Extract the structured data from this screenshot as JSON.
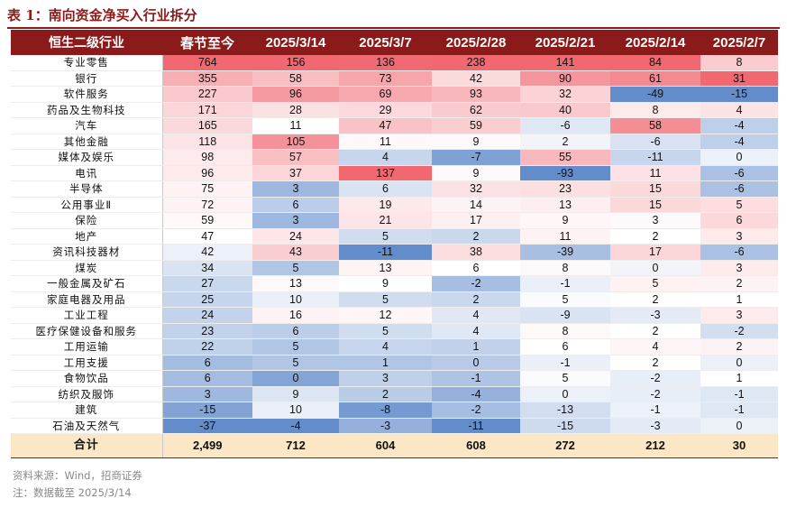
{
  "title": "表 1：南向资金净买入行业拆分",
  "headers": [
    "恒生二级行业",
    "春节至今",
    "2025/3/14",
    "2025/3/7",
    "2025/2/28",
    "2025/2/21",
    "2025/2/14",
    "2025/2/7"
  ],
  "rows": [
    {
      "name": "专业零售",
      "values": [
        764,
        156,
        136,
        238,
        141,
        84,
        8
      ]
    },
    {
      "name": "银行",
      "values": [
        355,
        58,
        73,
        42,
        90,
        61,
        31
      ]
    },
    {
      "name": "软件服务",
      "values": [
        227,
        96,
        69,
        93,
        32,
        -49,
        -15
      ]
    },
    {
      "name": "药品及生物科技",
      "values": [
        171,
        28,
        29,
        62,
        40,
        8,
        4
      ]
    },
    {
      "name": "汽车",
      "values": [
        165,
        11,
        47,
        59,
        -6,
        58,
        -4
      ]
    },
    {
      "name": "其他金融",
      "values": [
        118,
        105,
        11,
        9,
        2,
        -6,
        -4
      ]
    },
    {
      "name": "媒体及娱乐",
      "values": [
        98,
        57,
        4,
        -7,
        55,
        -11,
        0
      ]
    },
    {
      "name": "电讯",
      "values": [
        96,
        37,
        137,
        9,
        -93,
        11,
        -6
      ]
    },
    {
      "name": "半导体",
      "values": [
        75,
        3,
        6,
        32,
        23,
        15,
        -6
      ]
    },
    {
      "name": "公用事业Ⅱ",
      "values": [
        72,
        6,
        19,
        14,
        13,
        15,
        5
      ]
    },
    {
      "name": "保险",
      "values": [
        59,
        3,
        21,
        17,
        9,
        3,
        6
      ]
    },
    {
      "name": "地产",
      "values": [
        47,
        24,
        5,
        2,
        11,
        2,
        3
      ]
    },
    {
      "name": "资讯科技器材",
      "values": [
        42,
        43,
        -11,
        38,
        -39,
        17,
        -6
      ]
    },
    {
      "name": "煤炭",
      "values": [
        34,
        5,
        13,
        6,
        8,
        0,
        3
      ]
    },
    {
      "name": "一般金属及矿石",
      "values": [
        27,
        13,
        9,
        -2,
        -1,
        5,
        2
      ]
    },
    {
      "name": "家庭电器及用品",
      "values": [
        25,
        10,
        5,
        2,
        5,
        2,
        1
      ]
    },
    {
      "name": "工业工程",
      "values": [
        24,
        16,
        12,
        4,
        -9,
        -3,
        3
      ]
    },
    {
      "name": "医疗保健设备和服务",
      "values": [
        23,
        6,
        5,
        4,
        8,
        2,
        -2
      ]
    },
    {
      "name": "工用运输",
      "values": [
        22,
        5,
        4,
        1,
        6,
        4,
        2
      ]
    },
    {
      "name": "工用支援",
      "values": [
        6,
        5,
        1,
        0,
        -1,
        2,
        0
      ]
    },
    {
      "name": "食物饮品",
      "values": [
        6,
        0,
        3,
        -1,
        5,
        -2,
        1
      ]
    },
    {
      "name": "纺织及服饰",
      "values": [
        3,
        9,
        2,
        -4,
        0,
        -2,
        -1
      ]
    },
    {
      "name": "建筑",
      "values": [
        -15,
        10,
        -8,
        -2,
        -13,
        -1,
        -1
      ]
    },
    {
      "name": "石油及天然气",
      "values": [
        -37,
        -4,
        -3,
        -11,
        -15,
        -3,
        0
      ]
    }
  ],
  "total": {
    "name": "合计",
    "values": [
      "2,499",
      "712",
      "604",
      "608",
      "272",
      "212",
      "30"
    ]
  },
  "source_note": "资料来源：Wind，招商证券",
  "date_note": "注：数据截至 2025/3/14",
  "colors": {
    "header_bg": "#8b1a1a",
    "positive": "#f0606a",
    "negative": "#5b86c8",
    "total_bg": "#fbe7c6"
  }
}
